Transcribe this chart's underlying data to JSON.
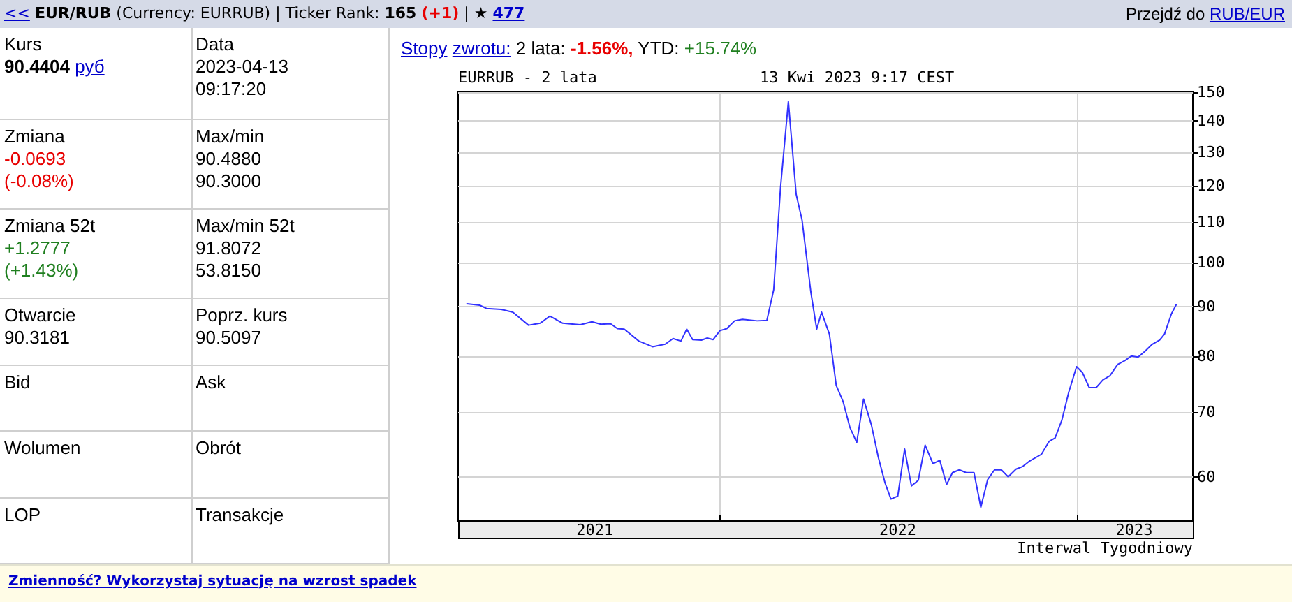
{
  "chart_data": [
    {
      "type": "other",
      "annotations": [
        "<<",
        "EUR/RUB",
        "(Currency: EURRUB) | Ticker Rank:",
        "165",
        "(+1)",
        "| ★",
        "477",
        "Przejdź do",
        "RUB/EUR",
        "Kurs\n90.4404 руб",
        "Data\n2023-04-13\n09:17:20",
        "Zmiana\n-0.0693\n(-0.08%)",
        "Max/min\n90.4880\n90.3000",
        "Zmiana 52t\n+1.2777\n(+1.43%)",
        "Max/min 52t\n91.8072\n53.8150",
        "Otwarcie\n90.3181",
        "Poprz. kurs\n90.5097",
        "Bid",
        "Ask",
        "Wolumen",
        "Obrót",
        "LOP",
        "Transakcje",
        "Stopy zwrotu: 2 lata: -1.56%, YTD: +15.74%",
        "Zmienność? Wykorzystaj sytuację na wzrost spadek"
      ]
    },
    {
      "type": "line",
      "title": "EURRUB - 2 lata",
      "subtitle": "13 Kwi 2023 9:17 CEST",
      "annotations": [
        "Interwal Tygodniowy"
      ],
      "x": [
        "2021-04-17",
        "2021-04-30",
        "2021-05-07",
        "2021-05-22",
        "2021-06-03",
        "2021-06-19",
        "2021-07-01",
        "2021-07-11",
        "2021-07-24",
        "2021-08-11",
        "2021-08-23",
        "2021-09-01",
        "2021-09-11",
        "2021-09-18",
        "2021-09-25",
        "2021-10-10",
        "2021-10-24",
        "2021-11-06",
        "2021-11-14",
        "2021-11-22",
        "2021-11-28",
        "2021-12-04",
        "2021-12-13",
        "2021-12-19",
        "2021-12-25",
        "2022-01-01",
        "2022-01-08",
        "2022-01-16",
        "2022-01-24",
        "2022-02-08",
        "2022-02-18",
        "2022-02-25",
        "2022-03-04",
        "2022-03-12",
        "2022-03-20",
        "2022-03-26",
        "2022-04-04",
        "2022-04-10",
        "2022-04-15",
        "2022-04-23",
        "2022-04-30",
        "2022-05-07",
        "2022-05-14",
        "2022-05-21",
        "2022-05-28",
        "2022-06-05",
        "2022-06-12",
        "2022-06-19",
        "2022-06-25",
        "2022-07-02",
        "2022-07-09",
        "2022-07-16",
        "2022-07-23",
        "2022-07-30",
        "2022-08-07",
        "2022-08-14",
        "2022-08-21",
        "2022-08-27",
        "2022-09-03",
        "2022-09-10",
        "2022-09-18",
        "2022-09-25",
        "2022-10-02",
        "2022-10-09",
        "2022-10-16",
        "2022-10-23",
        "2022-10-31",
        "2022-11-07",
        "2022-11-14",
        "2022-11-26",
        "2022-12-04",
        "2022-12-10",
        "2022-12-17",
        "2022-12-24",
        "2023-01-01",
        "2023-01-07",
        "2023-01-14",
        "2023-01-21",
        "2023-01-28",
        "2023-02-04",
        "2023-02-12",
        "2023-02-20",
        "2023-02-26",
        "2023-03-05",
        "2023-03-12",
        "2023-03-19",
        "2023-03-27",
        "2023-04-01",
        "2023-04-08",
        "2023-04-13"
      ],
      "values": [
        90.6,
        90.3,
        89.6,
        89.4,
        88.8,
        86.1,
        86.5,
        88.0,
        86.5,
        86.2,
        86.8,
        86.3,
        86.4,
        85.4,
        85.3,
        82.9,
        81.8,
        82.3,
        83.4,
        82.9,
        85.3,
        83.2,
        83.1,
        83.5,
        83.2,
        85.0,
        85.4,
        87.0,
        87.3,
        87.0,
        87.1,
        93.7,
        119.6,
        146.7,
        117.6,
        110.6,
        93.2,
        85.3,
        88.8,
        84.3,
        74.6,
        71.8,
        67.5,
        65.1,
        72.2,
        67.9,
        62.9,
        59.1,
        56.9,
        57.3,
        64.1,
        58.7,
        59.5,
        64.7,
        61.9,
        62.4,
        58.9,
        60.6,
        61.0,
        60.6,
        60.6,
        55.8,
        59.6,
        61.0,
        61.0,
        60.0,
        61.1,
        61.5,
        62.3,
        63.3,
        65.3,
        65.8,
        68.7,
        73.4,
        78.0,
        76.9,
        74.2,
        74.2,
        75.6,
        76.3,
        78.4,
        79.2,
        80.0,
        79.8,
        80.9,
        82.2,
        83.1,
        84.3,
        88.4,
        90.4
      ],
      "color": "#3232ff",
      "xlim": [
        "2021-04-08",
        "2023-04-30"
      ],
      "xticks": [
        {
          "value": "2021-08-26",
          "label": "2021"
        },
        {
          "value": "2022-01-01",
          "label": null
        },
        {
          "value": "2022-07-02",
          "label": "2022"
        },
        {
          "value": "2023-01-01",
          "label": null
        },
        {
          "value": "2023-03-01",
          "label": "2023"
        }
      ],
      "ylim": [
        54,
        150
      ],
      "yticks": [
        60,
        70,
        80,
        90,
        100,
        110,
        120,
        130,
        140,
        150
      ],
      "log": true,
      "grid": true
    }
  ]
}
